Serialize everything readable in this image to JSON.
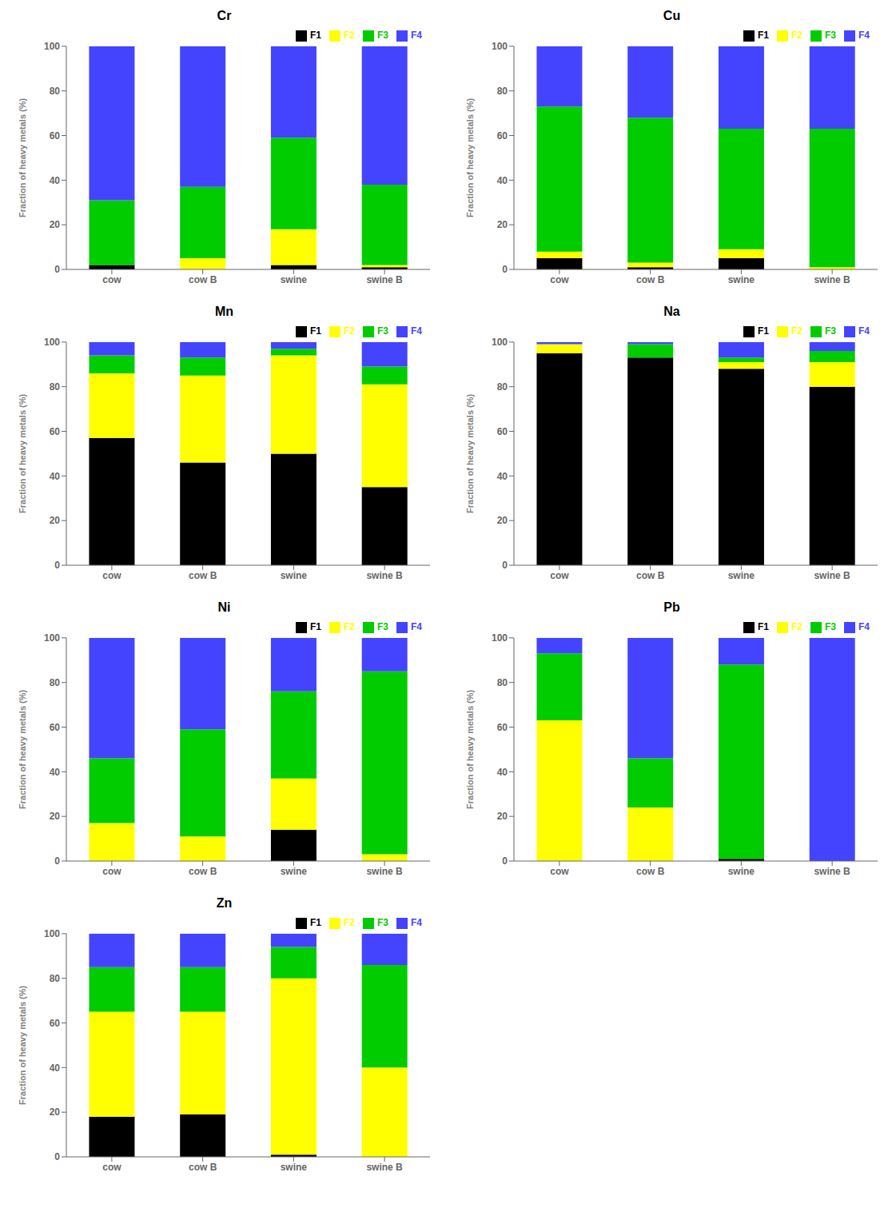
{
  "chart_data": [
    {
      "type": "bar",
      "title": "Cr",
      "ylabel": "Fraction of heavy metals (%)",
      "categories": [
        "cow",
        "cow B",
        "swine",
        "swine B"
      ],
      "series": [
        {
          "name": "F1",
          "color": "#000000",
          "values": [
            2,
            0,
            2,
            1
          ]
        },
        {
          "name": "F2",
          "color": "#ffff00",
          "values": [
            0,
            5,
            16,
            1
          ]
        },
        {
          "name": "F3",
          "color": "#00cc00",
          "values": [
            29,
            32,
            41,
            36
          ]
        },
        {
          "name": "F4",
          "color": "#4444ff",
          "values": [
            69,
            63,
            41,
            62
          ]
        }
      ],
      "stacked": true,
      "ylim": [
        0,
        100
      ],
      "yticks": [
        0,
        20,
        40,
        60,
        80,
        100
      ],
      "grid": false,
      "legend": "upper right"
    },
    {
      "type": "bar",
      "title": "Cu",
      "ylabel": "Fraction of heavy metals (%)",
      "categories": [
        "cow",
        "cow B",
        "swine",
        "swine B"
      ],
      "series": [
        {
          "name": "F1",
          "color": "#000000",
          "values": [
            5,
            1,
            5,
            0
          ]
        },
        {
          "name": "F2",
          "color": "#ffff00",
          "values": [
            3,
            2,
            4,
            1
          ]
        },
        {
          "name": "F3",
          "color": "#00cc00",
          "values": [
            65,
            65,
            54,
            62
          ]
        },
        {
          "name": "F4",
          "color": "#4444ff",
          "values": [
            27,
            32,
            37,
            37
          ]
        }
      ],
      "stacked": true,
      "ylim": [
        0,
        100
      ],
      "yticks": [
        0,
        20,
        40,
        60,
        80,
        100
      ],
      "grid": false,
      "legend": "upper right"
    },
    {
      "type": "bar",
      "title": "Mn",
      "ylabel": "Fraction of heavy metals (%)",
      "categories": [
        "cow",
        "cow B",
        "swine",
        "swine B"
      ],
      "series": [
        {
          "name": "F1",
          "color": "#000000",
          "values": [
            57,
            46,
            50,
            35
          ]
        },
        {
          "name": "F2",
          "color": "#ffff00",
          "values": [
            29,
            39,
            44,
            46
          ]
        },
        {
          "name": "F3",
          "color": "#00cc00",
          "values": [
            8,
            8,
            3,
            8
          ]
        },
        {
          "name": "F4",
          "color": "#4444ff",
          "values": [
            6,
            7,
            3,
            11
          ]
        }
      ],
      "stacked": true,
      "ylim": [
        0,
        100
      ],
      "yticks": [
        0,
        20,
        40,
        60,
        80,
        100
      ],
      "grid": false,
      "legend": "upper right"
    },
    {
      "type": "bar",
      "title": "Na",
      "ylabel": "Fraction of heavy metals (%)",
      "categories": [
        "cow",
        "cow B",
        "swine",
        "swine B"
      ],
      "series": [
        {
          "name": "F1",
          "color": "#000000",
          "values": [
            95,
            93,
            88,
            80
          ]
        },
        {
          "name": "F2",
          "color": "#ffff00",
          "values": [
            4,
            0,
            3,
            11
          ]
        },
        {
          "name": "F3",
          "color": "#00cc00",
          "values": [
            0,
            6,
            2,
            5
          ]
        },
        {
          "name": "F4",
          "color": "#4444ff",
          "values": [
            1,
            1,
            7,
            4
          ]
        }
      ],
      "stacked": true,
      "ylim": [
        0,
        100
      ],
      "yticks": [
        0,
        20,
        40,
        60,
        80,
        100
      ],
      "grid": false,
      "legend": "upper right"
    },
    {
      "type": "bar",
      "title": "Ni",
      "ylabel": "Fraction of heavy metals (%)",
      "categories": [
        "cow",
        "cow B",
        "swine",
        "swine B"
      ],
      "series": [
        {
          "name": "F1",
          "color": "#000000",
          "values": [
            0,
            0,
            14,
            0
          ]
        },
        {
          "name": "F2",
          "color": "#ffff00",
          "values": [
            17,
            11,
            23,
            3
          ]
        },
        {
          "name": "F3",
          "color": "#00cc00",
          "values": [
            29,
            48,
            39,
            82
          ]
        },
        {
          "name": "F4",
          "color": "#4444ff",
          "values": [
            54,
            41,
            24,
            15
          ]
        }
      ],
      "stacked": true,
      "ylim": [
        0,
        100
      ],
      "yticks": [
        0,
        20,
        40,
        60,
        80,
        100
      ],
      "grid": false,
      "legend": "upper right"
    },
    {
      "type": "bar",
      "title": "Pb",
      "ylabel": "Fraction of heavy metals (%)",
      "categories": [
        "cow",
        "cow B",
        "swine",
        "swine B"
      ],
      "series": [
        {
          "name": "F1",
          "color": "#000000",
          "values": [
            0,
            0,
            1,
            0
          ]
        },
        {
          "name": "F2",
          "color": "#ffff00",
          "values": [
            63,
            24,
            0,
            0
          ]
        },
        {
          "name": "F3",
          "color": "#00cc00",
          "values": [
            30,
            22,
            87,
            0
          ]
        },
        {
          "name": "F4",
          "color": "#4444ff",
          "values": [
            7,
            54,
            12,
            100
          ]
        }
      ],
      "stacked": true,
      "ylim": [
        0,
        100
      ],
      "yticks": [
        0,
        20,
        40,
        60,
        80,
        100
      ],
      "grid": false,
      "legend": "upper right"
    },
    {
      "type": "bar",
      "title": "Zn",
      "ylabel": "Fraction of heavy metals (%)",
      "categories": [
        "cow",
        "cow B",
        "swine",
        "swine B"
      ],
      "series": [
        {
          "name": "F1",
          "color": "#000000",
          "values": [
            18,
            19,
            1,
            0
          ]
        },
        {
          "name": "F2",
          "color": "#ffff00",
          "values": [
            47,
            46,
            79,
            40
          ]
        },
        {
          "name": "F3",
          "color": "#00cc00",
          "values": [
            20,
            20,
            14,
            46
          ]
        },
        {
          "name": "F4",
          "color": "#4444ff",
          "values": [
            15,
            15,
            6,
            14
          ]
        }
      ],
      "stacked": true,
      "ylim": [
        0,
        100
      ],
      "yticks": [
        0,
        20,
        40,
        60,
        80,
        100
      ],
      "grid": false,
      "legend": "upper right"
    }
  ]
}
